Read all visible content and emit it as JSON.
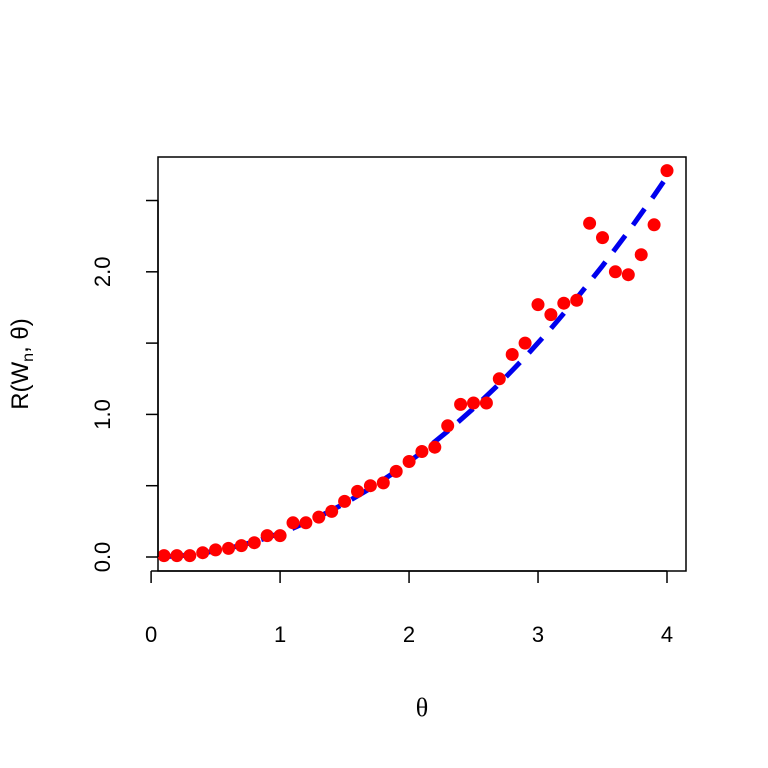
{
  "chart_data": {
    "type": "scatter",
    "title": "",
    "xlabel": "θ",
    "ylabel": "R(Wn, θ)",
    "ylabel_parts": {
      "main": "R(W",
      "sub": "n",
      "rest": ", θ)"
    },
    "xlim": [
      0.1,
      4.0
    ],
    "ylim": [
      0.0,
      2.7
    ],
    "x_ticks": [
      0,
      1,
      2,
      3,
      4
    ],
    "x_tick_labels": [
      "0",
      "1",
      "2",
      "3",
      "4"
    ],
    "y_ticks": [
      0.0,
      0.5,
      1.0,
      1.5,
      2.0,
      2.5
    ],
    "y_tick_labels": [
      "0.0",
      "",
      "1.0",
      "",
      "2.0",
      ""
    ],
    "grid": false,
    "series": [
      {
        "kind": "points",
        "color": "#ff0000",
        "x": [
          0.1,
          0.2,
          0.3,
          0.4,
          0.5,
          0.6,
          0.7,
          0.8,
          0.9,
          1.0,
          1.1,
          1.2,
          1.3,
          1.4,
          1.5,
          1.6,
          1.7,
          1.8,
          1.9,
          2.0,
          2.1,
          2.2,
          2.3,
          2.4,
          2.5,
          2.6,
          2.7,
          2.8,
          2.9,
          3.0,
          3.1,
          3.2,
          3.3,
          3.4,
          3.5,
          3.6,
          3.7,
          3.8,
          3.9,
          4.0
        ],
        "y": [
          0.01,
          0.01,
          0.01,
          0.03,
          0.05,
          0.06,
          0.08,
          0.1,
          0.15,
          0.15,
          0.24,
          0.24,
          0.28,
          0.32,
          0.39,
          0.46,
          0.5,
          0.52,
          0.6,
          0.67,
          0.74,
          0.77,
          0.92,
          1.07,
          1.08,
          1.08,
          1.25,
          1.42,
          1.5,
          1.77,
          1.7,
          1.78,
          1.8,
          2.34,
          2.24,
          2.0,
          1.98,
          2.12,
          2.33,
          2.71
        ]
      },
      {
        "kind": "curve",
        "color": "#0000ee",
        "style": "dashed",
        "x": [
          0.1,
          0.3,
          0.5,
          0.7,
          0.9,
          1.1,
          1.3,
          1.5,
          1.7,
          1.9,
          2.1,
          2.3,
          2.5,
          2.7,
          2.9,
          3.1,
          3.3,
          3.5,
          3.7,
          3.9,
          4.0
        ],
        "y": [
          0.0017,
          0.015,
          0.042,
          0.082,
          0.135,
          0.202,
          0.282,
          0.375,
          0.482,
          0.602,
          0.735,
          0.882,
          1.042,
          1.215,
          1.402,
          1.602,
          1.815,
          2.042,
          2.282,
          2.535,
          2.667
        ]
      }
    ]
  }
}
